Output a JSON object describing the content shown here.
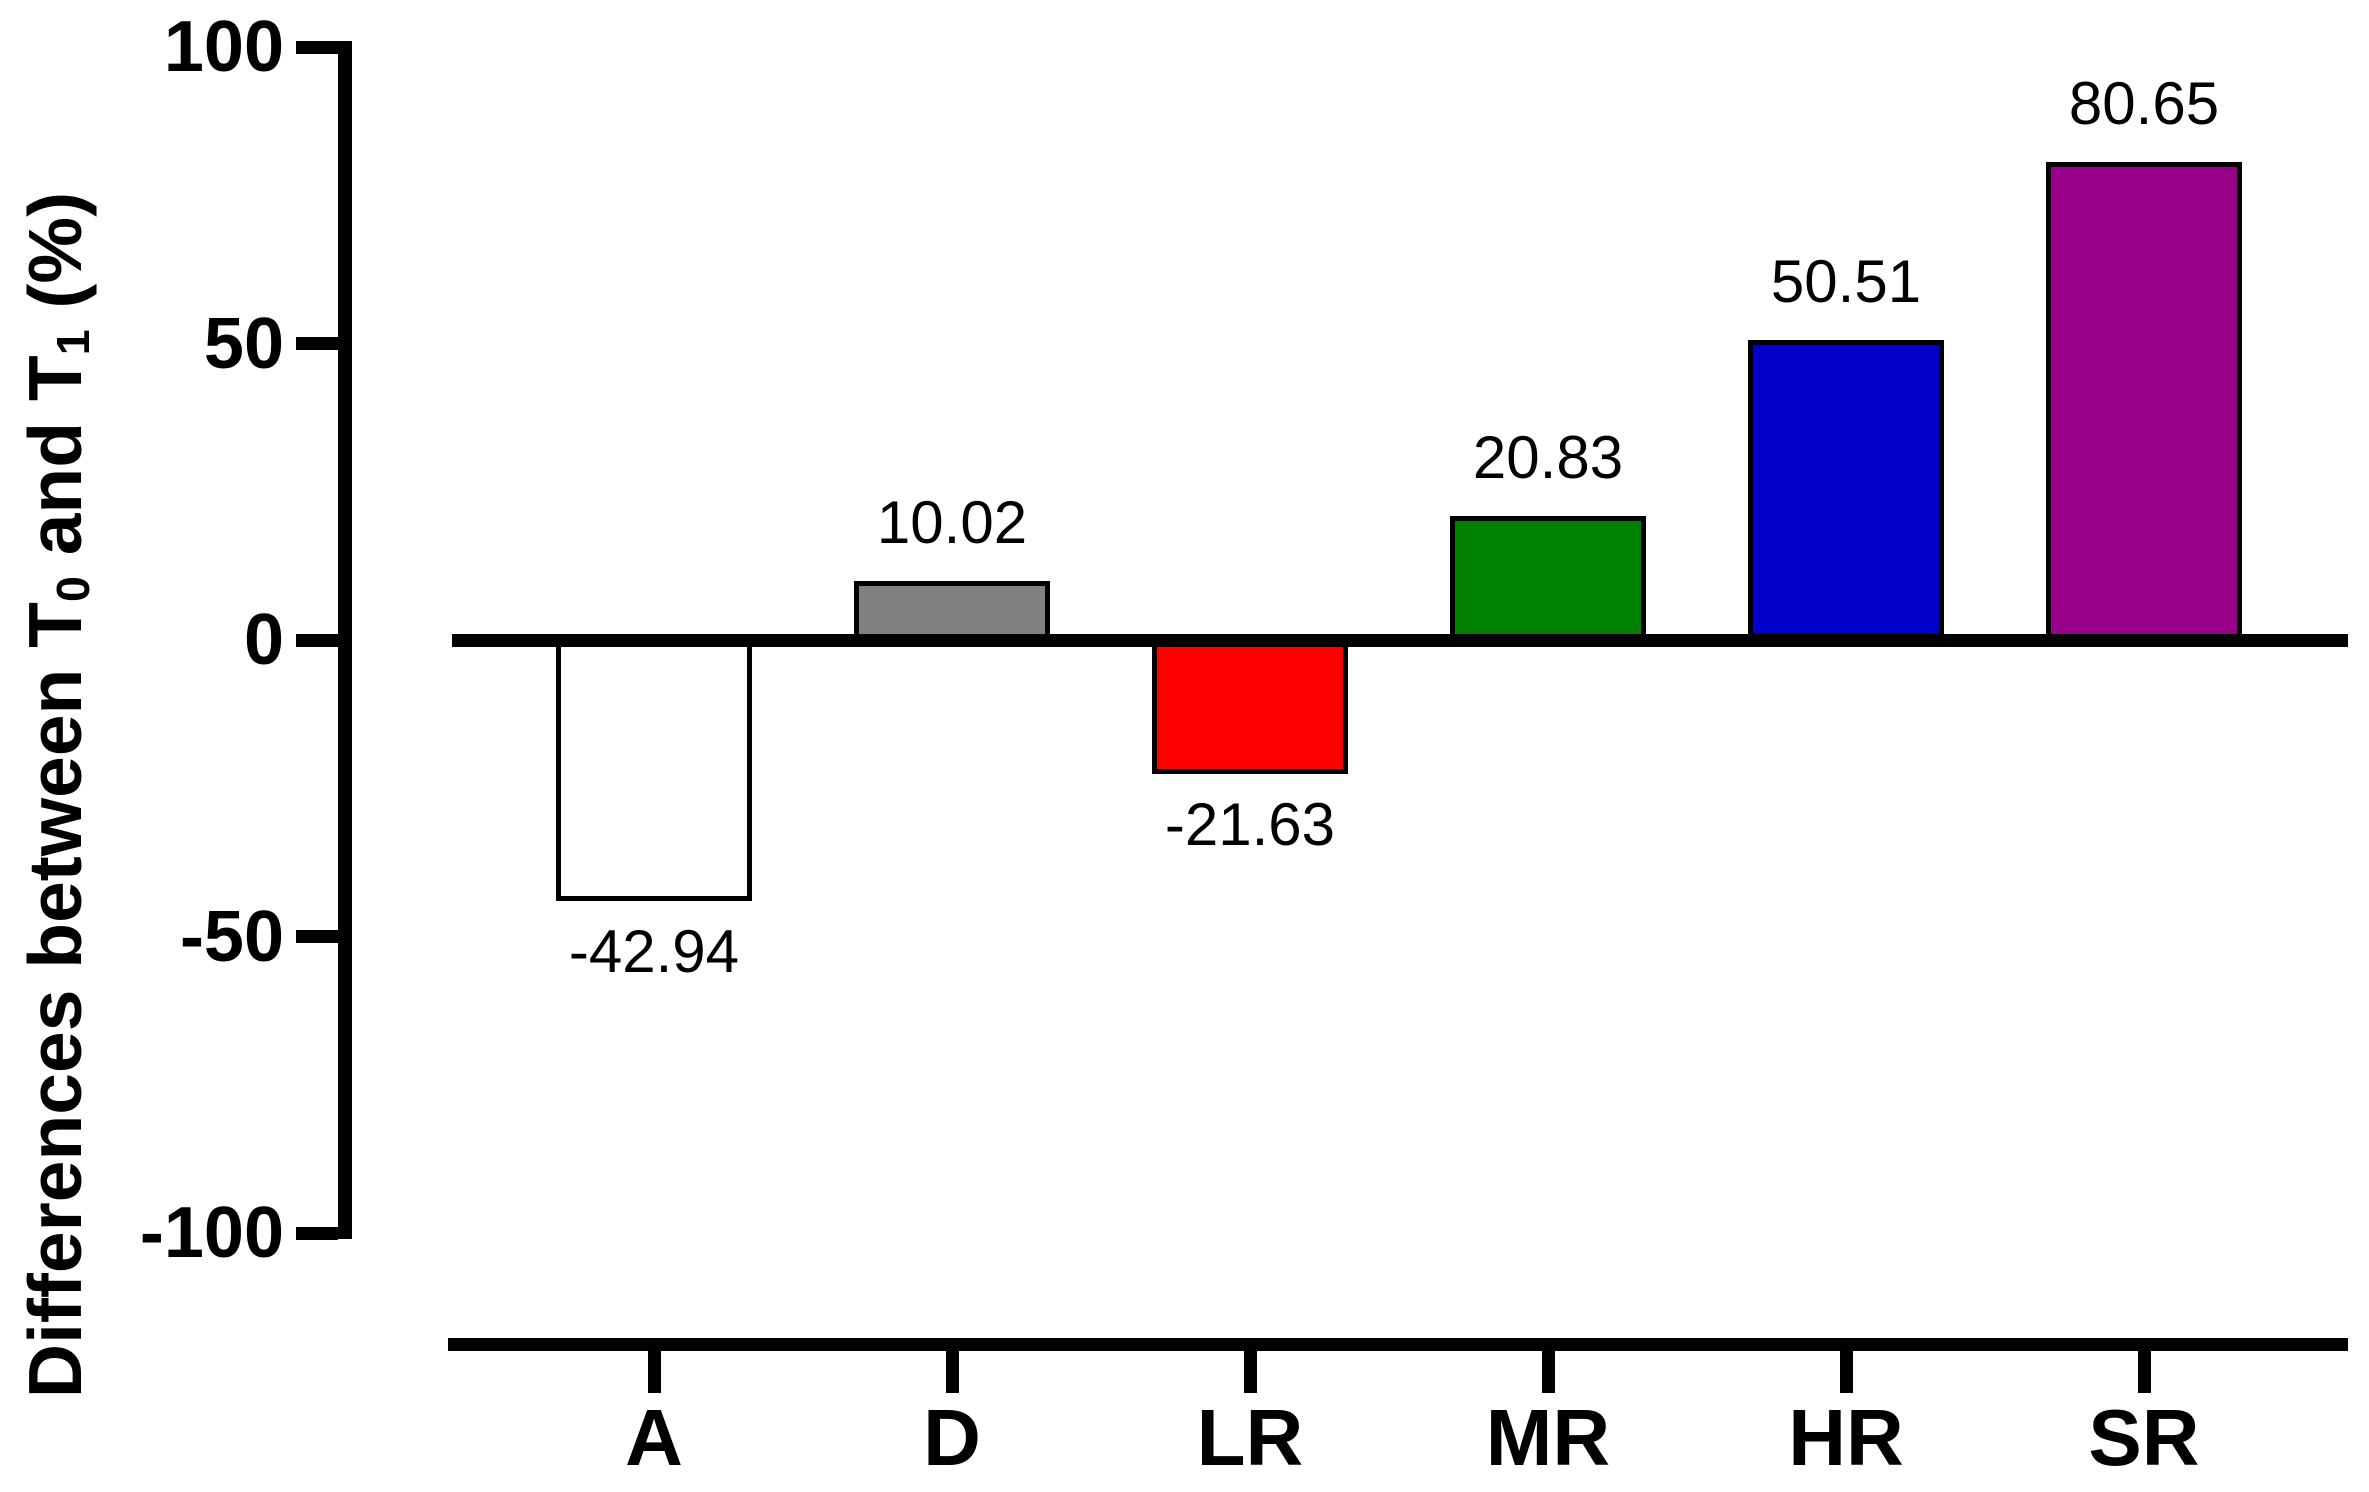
{
  "figure": {
    "background_color": "#ffffff",
    "axis_color": "#000000"
  },
  "chart_data": {
    "type": "bar",
    "title": "",
    "ylabel_text": "Differences between T0 and T1 (%)",
    "ylabel_parts": [
      [
        "text",
        "Differences between T"
      ],
      [
        "sub",
        "0"
      ],
      [
        "text",
        " and T"
      ],
      [
        "sub",
        "1"
      ],
      [
        "text",
        " (%)"
      ]
    ],
    "xlabel": "",
    "categories": [
      "A",
      "D",
      "LR",
      "MR",
      "HR",
      "SR"
    ],
    "values": [
      -42.94,
      10.02,
      -21.63,
      20.83,
      50.51,
      80.65
    ],
    "value_labels": [
      "-42.94",
      "10.02",
      "-21.63",
      "20.83",
      "50.51",
      "80.65"
    ],
    "bar_colors": [
      "#ffffff",
      "#808080",
      "#ff0000",
      "#008000",
      "#0000c8",
      "#980089"
    ],
    "bar_border_color": "#000000",
    "y_ticks": [
      100,
      50,
      0,
      -50,
      -100
    ],
    "y_tick_labels": [
      "100",
      "50",
      "0",
      "-50",
      "-100"
    ],
    "ylim": [
      -100,
      100
    ],
    "grid": false,
    "legend": null,
    "baseline_value": 0
  }
}
